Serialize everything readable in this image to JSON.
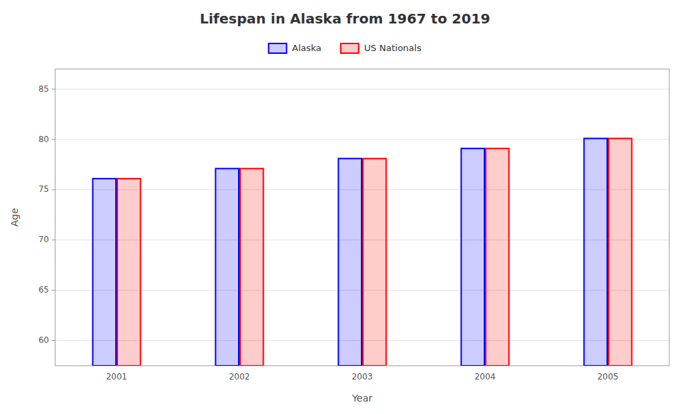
{
  "chart_data": {
    "type": "bar",
    "title": "Lifespan in Alaska from 1967 to 2019",
    "xlabel": "Year",
    "ylabel": "Age",
    "categories": [
      "2001",
      "2002",
      "2003",
      "2004",
      "2005"
    ],
    "series": [
      {
        "name": "Alaska",
        "color": "#0000ff",
        "values": [
          76.1,
          77.1,
          78.1,
          79.1,
          80.1
        ]
      },
      {
        "name": "US Nationals",
        "color": "#ff0000",
        "values": [
          76.1,
          77.1,
          78.1,
          79.1,
          80.1
        ]
      }
    ],
    "ylim": [
      57.5,
      87
    ],
    "yticks": [
      60,
      65,
      70,
      75,
      80,
      85
    ],
    "grid": true,
    "legend": "top"
  }
}
